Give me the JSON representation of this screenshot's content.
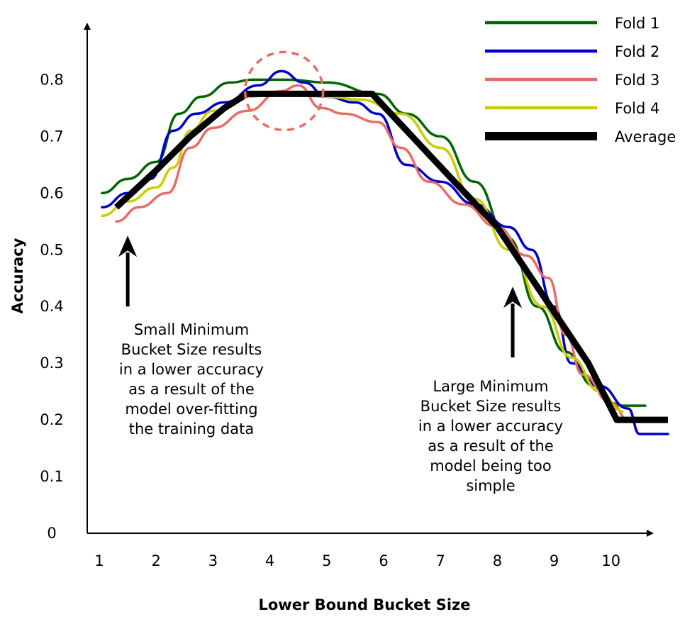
{
  "chart_data": {
    "type": "line",
    "xlabel": "Lower Bound Bucket Size",
    "ylabel": "Accuracy",
    "xlim": [
      0.8,
      11.0
    ],
    "ylim": [
      0,
      0.9
    ],
    "x_ticks": [
      "1",
      "2",
      "3",
      "4",
      "5",
      "6",
      "7",
      "8",
      "9",
      "10"
    ],
    "y_ticks": [
      "0",
      "0.1",
      "0.2",
      "0.3",
      "0.4",
      "0.5",
      "0.6",
      "0.7",
      "0.8"
    ],
    "legend_position": "top-right",
    "grid": false,
    "series": [
      {
        "name": "Fold 1",
        "color": "#006600",
        "x": [
          1.05,
          1.5,
          2.0,
          2.4,
          2.8,
          3.3,
          3.7,
          4.3,
          5.0,
          5.9,
          6.4,
          7.0,
          7.6,
          8.2,
          8.7,
          9.2,
          9.7,
          10.0,
          10.2,
          10.6
        ],
        "y": [
          0.6,
          0.625,
          0.655,
          0.74,
          0.77,
          0.795,
          0.8,
          0.8,
          0.795,
          0.775,
          0.74,
          0.7,
          0.62,
          0.52,
          0.4,
          0.32,
          0.26,
          0.23,
          0.225,
          0.225
        ]
      },
      {
        "name": "Fold 2",
        "color": "#0000cc",
        "x": [
          1.05,
          1.5,
          1.9,
          2.3,
          2.7,
          3.2,
          3.8,
          4.2,
          4.6,
          5.0,
          5.5,
          5.9,
          6.4,
          7.0,
          7.6,
          8.2,
          8.6,
          9.0,
          9.3,
          9.8,
          10.3,
          10.5,
          11.0
        ],
        "y": [
          0.575,
          0.6,
          0.625,
          0.71,
          0.74,
          0.76,
          0.79,
          0.815,
          0.795,
          0.77,
          0.76,
          0.74,
          0.65,
          0.62,
          0.58,
          0.54,
          0.5,
          0.4,
          0.3,
          0.26,
          0.22,
          0.175,
          0.175
        ]
      },
      {
        "name": "Fold 3",
        "color": "#ea6b66",
        "x": [
          1.3,
          1.7,
          2.2,
          2.6,
          3.0,
          3.6,
          4.2,
          4.5,
          4.9,
          5.3,
          5.9,
          6.3,
          6.8,
          7.4,
          8.0,
          8.5,
          8.9,
          9.2,
          9.5,
          10.0,
          10.3
        ],
        "y": [
          0.55,
          0.575,
          0.6,
          0.68,
          0.715,
          0.745,
          0.78,
          0.79,
          0.75,
          0.74,
          0.725,
          0.68,
          0.62,
          0.58,
          0.54,
          0.49,
          0.45,
          0.35,
          0.28,
          0.23,
          0.2
        ]
      },
      {
        "name": "Fold 4",
        "color": "#cccc00",
        "x": [
          1.05,
          1.5,
          2.0,
          2.3,
          2.6,
          3.0,
          3.6,
          4.2,
          5.0,
          5.6,
          6.3,
          7.0,
          7.6,
          8.2,
          8.8,
          9.3,
          9.8,
          10.2
        ],
        "y": [
          0.56,
          0.585,
          0.61,
          0.645,
          0.71,
          0.745,
          0.77,
          0.775,
          0.77,
          0.765,
          0.74,
          0.68,
          0.59,
          0.5,
          0.4,
          0.31,
          0.25,
          0.215
        ]
      },
      {
        "name": "Average",
        "color": "#000000",
        "x": [
          1.3,
          2.0,
          2.6,
          3.2,
          3.6,
          4.2,
          5.0,
          5.8,
          6.5,
          7.2,
          8.0,
          8.8,
          9.6,
          10.1,
          10.4,
          11.0
        ],
        "y": [
          0.575,
          0.64,
          0.7,
          0.75,
          0.775,
          0.775,
          0.775,
          0.775,
          0.7,
          0.625,
          0.54,
          0.42,
          0.3,
          0.2,
          0.2,
          0.2
        ]
      }
    ],
    "annotations": [
      {
        "lines": [
          "Small Minimum",
          "Bucket Size results",
          "in a lower accuracy",
          "as a result of the",
          "model over-fitting",
          "the training data"
        ],
        "arrow_x": 1.5,
        "arrow_from_y": 0.4,
        "arrow_to_y": 0.525
      },
      {
        "lines": [
          "Large Minimum",
          "Bucket Size results",
          "in a lower accuracy",
          "as a result of the",
          "model being too",
          "simple"
        ],
        "arrow_x": 8.27,
        "arrow_from_y": 0.31,
        "arrow_to_y": 0.435
      }
    ],
    "highlight": {
      "shape": "dashed-circle",
      "color": "#ea6b66",
      "cx": 4.25,
      "cy": 0.78
    }
  }
}
